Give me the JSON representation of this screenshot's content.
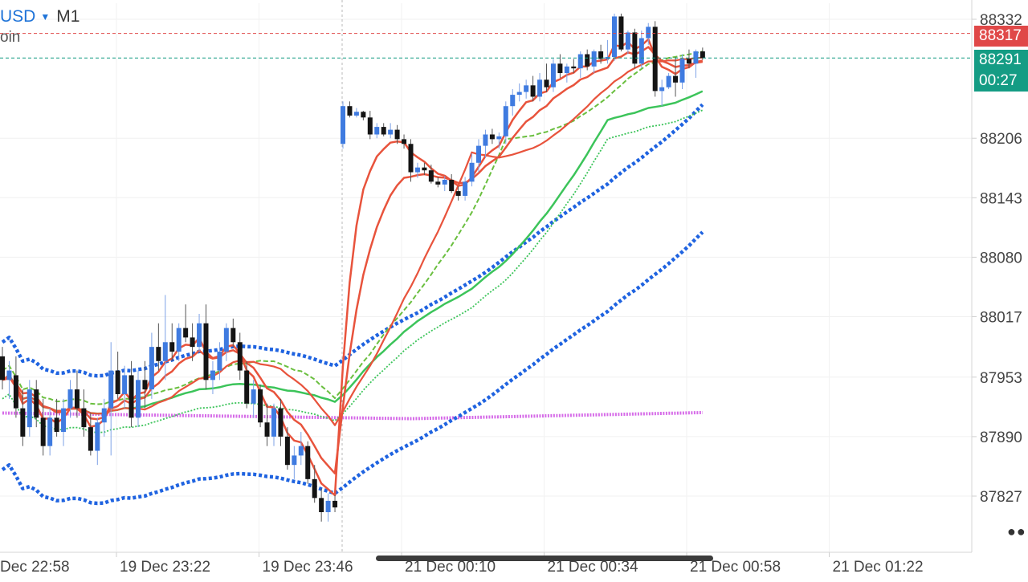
{
  "header": {
    "symbol": "USD",
    "timeframe": "M1",
    "indicator_label": "oin"
  },
  "price_tags": {
    "ask": "88317",
    "bid": "88291",
    "countdown": "00:27"
  },
  "colors": {
    "up_candle": "#3f7be0",
    "down_candle": "#141414",
    "ask_line": "#e04848",
    "bid_line": "#149c84",
    "ma_red": "#e8533c",
    "ma_green": "#3cc45a",
    "ma_green_dashed": "#6abf3f",
    "ma_blue_dotted": "#1f63e0",
    "ma_magenta": "#d66be8"
  },
  "chart_data": {
    "type": "candlestick",
    "title": "",
    "xlabel": "",
    "ylabel": "",
    "price_axis_ticks": [
      "88332",
      "88206",
      "88143",
      "88080",
      "88017",
      "87953",
      "87890",
      "87827"
    ],
    "time_axis_ticks": [
      "Dec 22:58",
      "19 Dec 23:22",
      "19 Dec 23:46",
      "21 Dec 00:10",
      "21 Dec 00:34",
      "21 Dec 00:58",
      "21 Dec 01:22"
    ],
    "ylim": [
      87795,
      88350
    ],
    "ask_price": 88317,
    "bid_price": 88291,
    "candles": [
      [
        87975,
        87985,
        87940,
        87950
      ],
      [
        87950,
        87970,
        87930,
        87960
      ],
      [
        87955,
        87975,
        87910,
        87920
      ],
      [
        87920,
        87940,
        87880,
        87890
      ],
      [
        87900,
        87950,
        87890,
        87940
      ],
      [
        87940,
        87950,
        87900,
        87910
      ],
      [
        87910,
        87930,
        87870,
        87880
      ],
      [
        87880,
        87920,
        87870,
        87910
      ],
      [
        87910,
        87930,
        87890,
        87895
      ],
      [
        87895,
        87930,
        87880,
        87920
      ],
      [
        87920,
        87950,
        87910,
        87940
      ],
      [
        87940,
        87960,
        87910,
        87920
      ],
      [
        87920,
        87940,
        87890,
        87900
      ],
      [
        87900,
        87915,
        87870,
        87875
      ],
      [
        87875,
        87910,
        87860,
        87905
      ],
      [
        87905,
        87930,
        87890,
        87920
      ],
      [
        87920,
        87990,
        87870,
        87960
      ],
      [
        87960,
        87980,
        87930,
        87935
      ],
      [
        87935,
        87965,
        87920,
        87955
      ],
      [
        87955,
        87970,
        87900,
        87910
      ],
      [
        87910,
        87960,
        87900,
        87950
      ],
      [
        87950,
        87970,
        87920,
        87940
      ],
      [
        87940,
        88000,
        87930,
        87985
      ],
      [
        87985,
        88010,
        87960,
        87970
      ],
      [
        87970,
        88040,
        87950,
        87990
      ],
      [
        87990,
        88010,
        87970,
        87980
      ],
      [
        87980,
        88010,
        87970,
        88005
      ],
      [
        88005,
        88030,
        87990,
        87995
      ],
      [
        87995,
        88010,
        87970,
        87985
      ],
      [
        87985,
        88020,
        87980,
        88010
      ],
      [
        88010,
        88030,
        87940,
        87950
      ],
      [
        87950,
        87970,
        87935,
        87960
      ],
      [
        87960,
        87990,
        87950,
        87980
      ],
      [
        87980,
        88010,
        87970,
        88005
      ],
      [
        88005,
        88015,
        87985,
        87990
      ],
      [
        87990,
        88000,
        87950,
        87960
      ],
      [
        87960,
        87970,
        87920,
        87925
      ],
      [
        87925,
        87950,
        87910,
        87940
      ],
      [
        87940,
        87945,
        87900,
        87905
      ],
      [
        87905,
        87925,
        87880,
        87890
      ],
      [
        87890,
        87925,
        87880,
        87920
      ],
      [
        87920,
        87930,
        87880,
        87890
      ],
      [
        87890,
        87900,
        87855,
        87860
      ],
      [
        87860,
        87880,
        87845,
        87870
      ],
      [
        87870,
        87895,
        87860,
        87880
      ],
      [
        87880,
        87885,
        87840,
        87845
      ],
      [
        87845,
        87860,
        87820,
        87825
      ],
      [
        87825,
        87835,
        87800,
        87810
      ],
      [
        87810,
        87830,
        87800,
        87822
      ],
      [
        87822,
        87828,
        87810,
        87815
      ],
      [
        88200,
        88245,
        88195,
        88240
      ],
      [
        88240,
        88245,
        88228,
        88230
      ],
      [
        88230,
        88238,
        88228,
        88234
      ],
      [
        88234,
        88235,
        88225,
        88228
      ],
      [
        88228,
        88235,
        88205,
        88210
      ],
      [
        88210,
        88222,
        88206,
        88218
      ],
      [
        88218,
        88222,
        88208,
        88210
      ],
      [
        88210,
        88222,
        88206,
        88215
      ],
      [
        88215,
        88220,
        88200,
        88205
      ],
      [
        88205,
        88210,
        88195,
        88200
      ],
      [
        88200,
        88205,
        88160,
        88170
      ],
      [
        88170,
        88180,
        88164,
        88175
      ],
      [
        88175,
        88180,
        88167,
        88172
      ],
      [
        88172,
        88178,
        88158,
        88160
      ],
      [
        88160,
        88165,
        88154,
        88157
      ],
      [
        88157,
        88166,
        88150,
        88162
      ],
      [
        88162,
        88168,
        88148,
        88150
      ],
      [
        88150,
        88155,
        88140,
        88145
      ],
      [
        88145,
        88165,
        88140,
        88160
      ],
      [
        88160,
        88190,
        88155,
        88180
      ],
      [
        88180,
        88205,
        88170,
        88198
      ],
      [
        88198,
        88215,
        88185,
        88210
      ],
      [
        88210,
        88216,
        88200,
        88205
      ],
      [
        88205,
        88212,
        88195,
        88208
      ],
      [
        88208,
        88245,
        88200,
        88240
      ],
      [
        88240,
        88258,
        88230,
        88252
      ],
      [
        88252,
        88264,
        88245,
        88255
      ],
      [
        88255,
        88268,
        88248,
        88262
      ],
      [
        88262,
        88272,
        88245,
        88250
      ],
      [
        88250,
        88275,
        88245,
        88268
      ],
      [
        88268,
        88285,
        88255,
        88260
      ],
      [
        88260,
        88290,
        88255,
        88285
      ],
      [
        88285,
        88295,
        88270,
        88275
      ],
      [
        88275,
        88285,
        88265,
        88282
      ],
      [
        88282,
        88290,
        88275,
        88280
      ],
      [
        88280,
        88298,
        88270,
        88295
      ],
      [
        88295,
        88300,
        88278,
        88282
      ],
      [
        88282,
        88300,
        88275,
        88298
      ],
      [
        88298,
        88305,
        88285,
        88290
      ],
      [
        88290,
        88310,
        88285,
        88292
      ],
      [
        88292,
        88338,
        88288,
        88335
      ],
      [
        88335,
        88338,
        88298,
        88300
      ],
      [
        88300,
        88320,
        88295,
        88318
      ],
      [
        88318,
        88322,
        88280,
        88285
      ],
      [
        88285,
        88320,
        88280,
        88312
      ],
      [
        88312,
        88328,
        88305,
        88324
      ],
      [
        88324,
        88330,
        88250,
        88256
      ],
      [
        88256,
        88268,
        88240,
        88260
      ],
      [
        88260,
        88275,
        88258,
        88272
      ],
      [
        88272,
        88292,
        88250,
        88265
      ],
      [
        88265,
        88295,
        88258,
        88290
      ],
      [
        88290,
        88300,
        88280,
        88285
      ],
      [
        88285,
        88300,
        88270,
        88298
      ],
      [
        88298,
        88302,
        88289,
        88291
      ]
    ]
  }
}
